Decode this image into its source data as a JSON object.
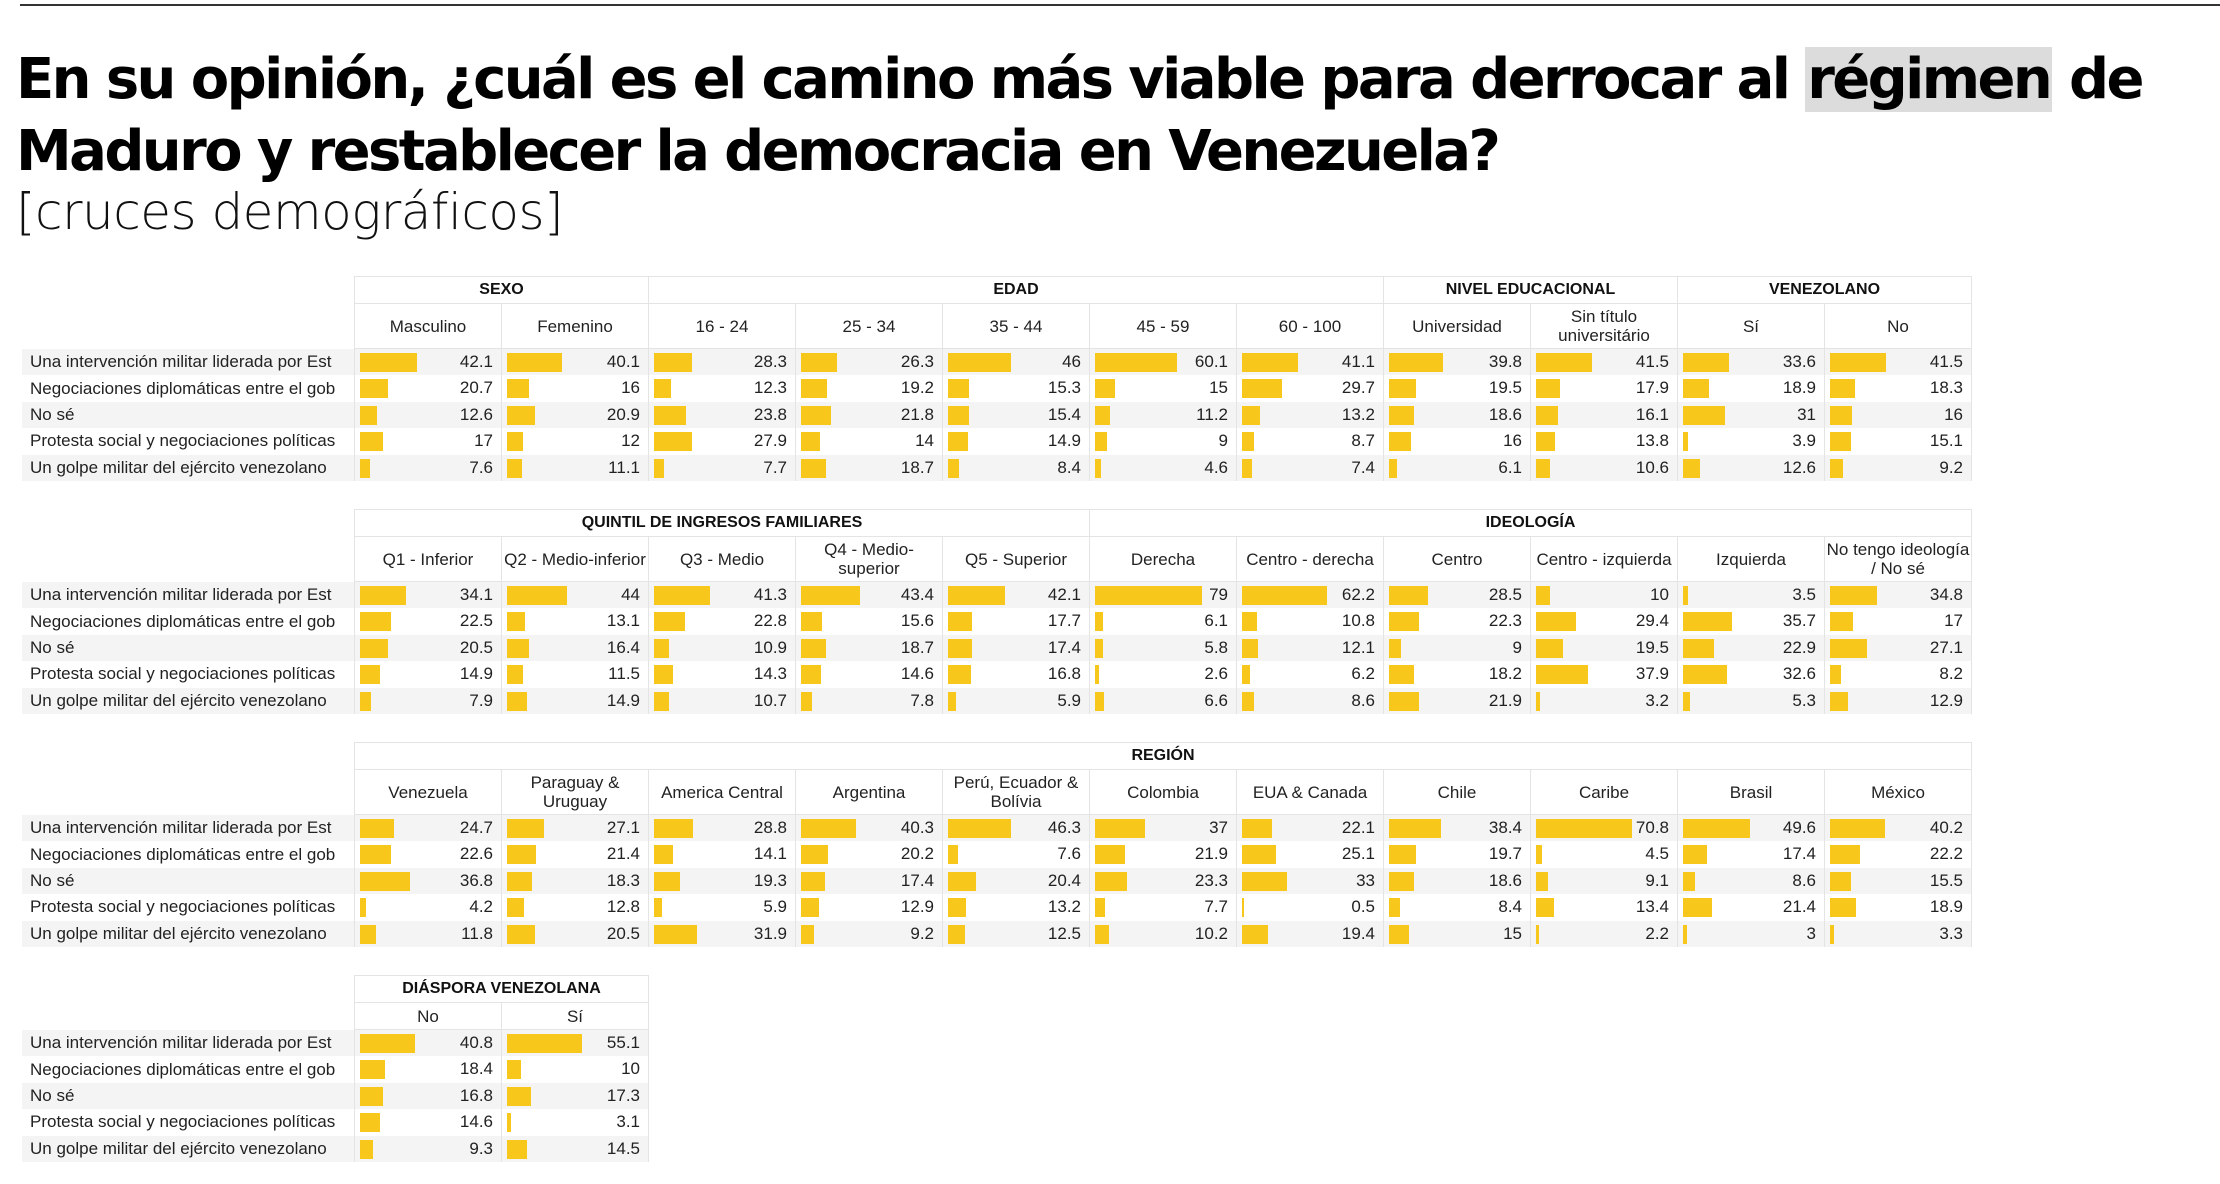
{
  "header": {
    "title_before": "En su opinión, ¿cuál es el camino más viable para derrocar al ",
    "title_highlight": "régimen",
    "title_after": " de Maduro y restablecer la democracia en Venezuela?",
    "subtitle": "[cruces demográficos]"
  },
  "colors": {
    "bar": "#f8c71b",
    "highlight": "#dcdcdc"
  },
  "chart_data": {
    "type": "table",
    "title": "En su opinión, ¿cuál es el camino más viable para derrocar al régimen de Maduro y restablecer la democracia en Venezuela?",
    "subtitle": "[cruces demográficos]",
    "bar_scale_max": 100,
    "row_labels": [
      "Una intervención militar liderada por Est",
      "Negociaciones diplomáticas entre el gob",
      "No sé",
      "Protesta social y negociaciones políticas",
      "Un golpe militar del ejército venezolano"
    ],
    "tables": [
      {
        "groups": [
          {
            "name": "SEXO",
            "columns": [
              {
                "label": "Masculino",
                "values": [
                  42.1,
                  20.7,
                  12.6,
                  17,
                  7.6
                ]
              },
              {
                "label": "Femenino",
                "values": [
                  40.1,
                  16,
                  20.9,
                  12,
                  11.1
                ]
              }
            ]
          },
          {
            "name": "EDAD",
            "columns": [
              {
                "label": "16 - 24",
                "values": [
                  28.3,
                  12.3,
                  23.8,
                  27.9,
                  7.7
                ]
              },
              {
                "label": "25 - 34",
                "values": [
                  26.3,
                  19.2,
                  21.8,
                  14,
                  18.7
                ]
              },
              {
                "label": "35 - 44",
                "values": [
                  46,
                  15.3,
                  15.4,
                  14.9,
                  8.4
                ]
              },
              {
                "label": "45 - 59",
                "values": [
                  60.1,
                  15,
                  11.2,
                  9,
                  4.6
                ]
              },
              {
                "label": "60 - 100",
                "values": [
                  41.1,
                  29.7,
                  13.2,
                  8.7,
                  7.4
                ]
              }
            ]
          },
          {
            "name": "NIVEL EDUCACIONAL",
            "columns": [
              {
                "label": "Universidad",
                "values": [
                  39.8,
                  19.5,
                  18.6,
                  16,
                  6.1
                ]
              },
              {
                "label": "Sin título universitário",
                "values": [
                  41.5,
                  17.9,
                  16.1,
                  13.8,
                  10.6
                ]
              }
            ]
          },
          {
            "name": "VENEZOLANO",
            "columns": [
              {
                "label": "Sí",
                "values": [
                  33.6,
                  18.9,
                  31,
                  3.9,
                  12.6
                ]
              },
              {
                "label": "No",
                "values": [
                  41.5,
                  18.3,
                  16,
                  15.1,
                  9.2
                ]
              }
            ]
          }
        ]
      },
      {
        "groups": [
          {
            "name": "QUINTIL DE INGRESOS FAMILIARES",
            "columns": [
              {
                "label": "Q1 - Inferior",
                "values": [
                  34.1,
                  22.5,
                  20.5,
                  14.9,
                  7.9
                ]
              },
              {
                "label": "Q2 - Medio-inferior",
                "values": [
                  44,
                  13.1,
                  16.4,
                  11.5,
                  14.9
                ]
              },
              {
                "label": "Q3 - Medio",
                "values": [
                  41.3,
                  22.8,
                  10.9,
                  14.3,
                  10.7
                ]
              },
              {
                "label": "Q4 - Medio-superior",
                "values": [
                  43.4,
                  15.6,
                  18.7,
                  14.6,
                  7.8
                ]
              },
              {
                "label": "Q5 - Superior",
                "values": [
                  42.1,
                  17.7,
                  17.4,
                  16.8,
                  5.9
                ]
              }
            ]
          },
          {
            "name": "IDEOLOGÍA",
            "columns": [
              {
                "label": "Derecha",
                "values": [
                  79,
                  6.1,
                  5.8,
                  2.6,
                  6.6
                ]
              },
              {
                "label": "Centro - derecha",
                "values": [
                  62.2,
                  10.8,
                  12.1,
                  6.2,
                  8.6
                ]
              },
              {
                "label": "Centro",
                "values": [
                  28.5,
                  22.3,
                  9,
                  18.2,
                  21.9
                ]
              },
              {
                "label": "Centro - izquierda",
                "values": [
                  10,
                  29.4,
                  19.5,
                  37.9,
                  3.2
                ]
              },
              {
                "label": "Izquierda",
                "values": [
                  3.5,
                  35.7,
                  22.9,
                  32.6,
                  5.3
                ]
              },
              {
                "label": "No tengo ideología / No sé",
                "values": [
                  34.8,
                  17,
                  27.1,
                  8.2,
                  12.9
                ]
              }
            ]
          }
        ]
      },
      {
        "groups": [
          {
            "name": "REGIÓN",
            "columns": [
              {
                "label": "Venezuela",
                "values": [
                  24.7,
                  22.6,
                  36.8,
                  4.2,
                  11.8
                ]
              },
              {
                "label": "Paraguay & Uruguay",
                "values": [
                  27.1,
                  21.4,
                  18.3,
                  12.8,
                  20.5
                ]
              },
              {
                "label": "America Central",
                "values": [
                  28.8,
                  14.1,
                  19.3,
                  5.9,
                  31.9
                ]
              },
              {
                "label": "Argentina",
                "values": [
                  40.3,
                  20.2,
                  17.4,
                  12.9,
                  9.2
                ]
              },
              {
                "label": "Perú, Ecuador & Bolívia",
                "values": [
                  46.3,
                  7.6,
                  20.4,
                  13.2,
                  12.5
                ]
              },
              {
                "label": "Colombia",
                "values": [
                  37,
                  21.9,
                  23.3,
                  7.7,
                  10.2
                ]
              },
              {
                "label": "EUA & Canada",
                "values": [
                  22.1,
                  25.1,
                  33,
                  0.5,
                  19.4
                ]
              },
              {
                "label": "Chile",
                "values": [
                  38.4,
                  19.7,
                  18.6,
                  8.4,
                  15
                ]
              },
              {
                "label": "Caribe",
                "values": [
                  70.8,
                  4.5,
                  9.1,
                  13.4,
                  2.2
                ]
              },
              {
                "label": "Brasil",
                "values": [
                  49.6,
                  17.4,
                  8.6,
                  21.4,
                  3
                ]
              },
              {
                "label": "México",
                "values": [
                  40.2,
                  22.2,
                  15.5,
                  18.9,
                  3.3
                ]
              }
            ]
          }
        ]
      },
      {
        "groups": [
          {
            "name": "DIÁSPORA VENEZOLANA",
            "columns": [
              {
                "label": "No",
                "values": [
                  40.8,
                  18.4,
                  16.8,
                  14.6,
                  9.3
                ]
              },
              {
                "label": "Sí",
                "values": [
                  55.1,
                  10,
                  17.3,
                  3.1,
                  14.5
                ]
              }
            ]
          }
        ]
      }
    ]
  }
}
